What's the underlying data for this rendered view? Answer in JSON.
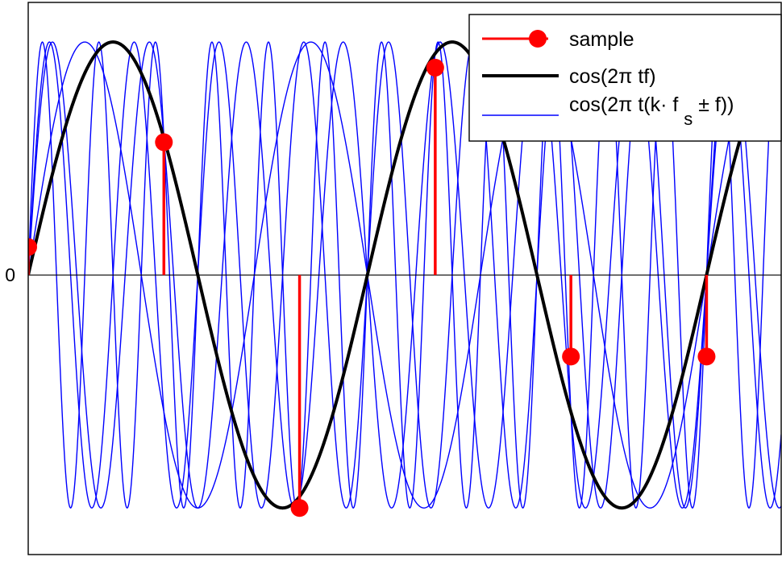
{
  "chart_data": {
    "type": "line",
    "title": "",
    "xlabel": "",
    "ylabel": "",
    "xlim": [
      0,
      5.55
    ],
    "ylim": [
      -1.2,
      1.17
    ],
    "y_tick_labels": [
      {
        "value": 0,
        "label": "0"
      }
    ],
    "grid": false,
    "legend_position": "top-right",
    "legend": [
      {
        "label_main": "sample",
        "label_sub": "",
        "label_tail": "",
        "style": "stem-marker",
        "color": "#ff0000"
      },
      {
        "label_main": "cos(2π tf)",
        "label_sub": "",
        "label_tail": "",
        "style": "thick-line",
        "color": "#000000"
      },
      {
        "label_main": "cos(2π t(k· f",
        "label_sub": "s",
        "label_tail": "± f))",
        "style": "thin-line",
        "color": "#0000ff"
      }
    ],
    "base_signal": {
      "name": "cos(2π tf)",
      "amplitude": 1,
      "cycles_per_unit_x": 0.4,
      "phase_cycles": -0.25,
      "color": "#000000"
    },
    "aliases": {
      "name": "cos(2π t(k· f_s± f))",
      "color": "#0000ff",
      "amplitude": 1,
      "phase_cycles": -0.25,
      "cycles_per_unit_x": [
        0.6,
        1.4,
        1.6,
        2.4
      ]
    },
    "samples": {
      "name": "sample",
      "color": "#ff0000",
      "x": [
        0,
        1,
        2,
        3,
        4,
        5
      ],
      "y": [
        0.12,
        0.57,
        -1.0,
        0.89,
        -0.35,
        -0.35
      ]
    }
  }
}
